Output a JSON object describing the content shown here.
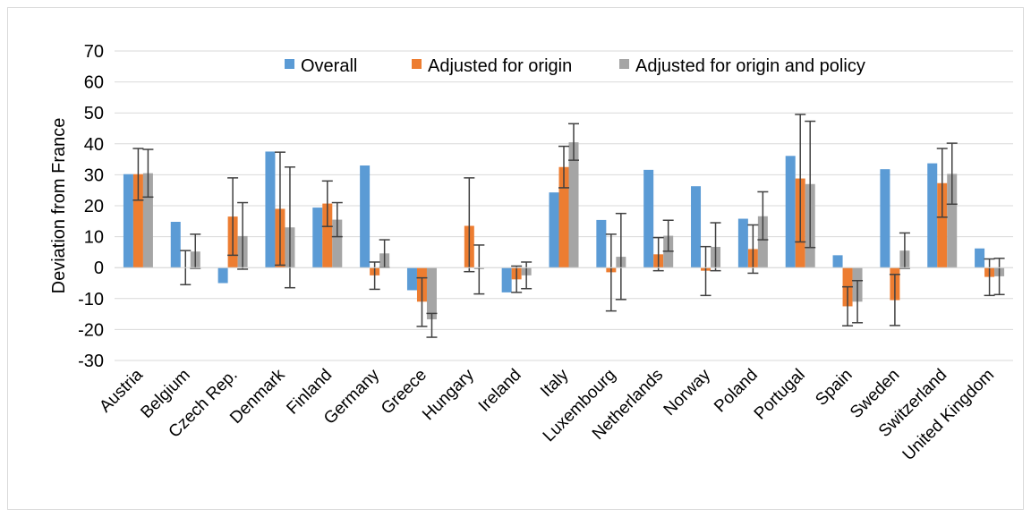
{
  "chart_data": {
    "type": "bar",
    "title": "",
    "xlabel": "",
    "ylabel": "Deviation from France",
    "ylim": [
      -30,
      70
    ],
    "yticks": [
      -30,
      -20,
      -10,
      0,
      10,
      20,
      30,
      40,
      50,
      60,
      70
    ],
    "grid": true,
    "legend_position": "top",
    "categories": [
      "Austria",
      "Belgium",
      "Czech Rep.",
      "Denmark",
      "Finland",
      "Germany",
      "Greece",
      "Hungary",
      "Ireland",
      "Italy",
      "Luxembourg",
      "Netherlands",
      "Norway",
      "Poland",
      "Portugal",
      "Spain",
      "Sweden",
      "Switzerland",
      "United Kingdom"
    ],
    "series": [
      {
        "name": "Overall",
        "color": "#5b9bd5",
        "values": [
          30.2,
          14.8,
          -5.0,
          37.5,
          19.4,
          33.0,
          -7.3,
          0,
          -8.0,
          24.3,
          15.4,
          31.6,
          26.3,
          15.8,
          36.1,
          4.0,
          31.8,
          33.7,
          6.2
        ],
        "error_low": [
          null,
          null,
          null,
          null,
          null,
          null,
          null,
          null,
          null,
          null,
          null,
          null,
          null,
          null,
          null,
          null,
          null,
          null,
          null
        ],
        "error_high": [
          null,
          null,
          null,
          null,
          null,
          null,
          null,
          null,
          null,
          null,
          null,
          null,
          null,
          null,
          null,
          null,
          null,
          null,
          null
        ]
      },
      {
        "name": "Adjusted for origin",
        "color": "#ed7d31",
        "values": [
          30.2,
          0,
          16.5,
          19.0,
          20.7,
          -2.5,
          -11.0,
          13.5,
          -3.8,
          32.5,
          -1.5,
          4.3,
          -1.0,
          6.0,
          28.8,
          -12.5,
          -10.5,
          27.3,
          -3.0
        ],
        "error_low": [
          21.8,
          -5.5,
          4.0,
          0.8,
          13.3,
          -7.0,
          -19.0,
          -1.3,
          -8.0,
          25.8,
          -14.0,
          -1.0,
          -9.0,
          -1.8,
          8.3,
          -18.8,
          -18.7,
          16.3,
          -9.0
        ],
        "error_high": [
          38.5,
          5.5,
          29.0,
          37.3,
          28.0,
          1.8,
          -3.3,
          29.0,
          0.5,
          39.2,
          10.8,
          9.7,
          6.8,
          13.8,
          49.5,
          -6.2,
          -2.2,
          38.5,
          2.8
        ]
      },
      {
        "name": "Adjusted for origin and policy",
        "color": "#a5a5a5",
        "values": [
          30.5,
          5.2,
          10.2,
          13.0,
          15.5,
          4.6,
          -16.7,
          -0.5,
          -2.5,
          40.5,
          3.5,
          10.3,
          6.7,
          16.6,
          27.0,
          -11.0,
          5.5,
          30.3,
          -2.8
        ],
        "error_low": [
          22.8,
          -0.2,
          -0.5,
          -6.5,
          10.0,
          0.0,
          -22.5,
          -8.5,
          -6.8,
          34.7,
          -10.3,
          5.3,
          -1.0,
          9.0,
          6.5,
          -17.8,
          -0.2,
          20.5,
          -8.7
        ],
        "error_high": [
          38.2,
          10.8,
          21.0,
          32.5,
          21.0,
          9.0,
          -14.8,
          7.3,
          1.8,
          46.5,
          17.5,
          15.3,
          14.5,
          24.5,
          47.3,
          -4.2,
          11.2,
          40.2,
          3.0
        ]
      }
    ]
  }
}
